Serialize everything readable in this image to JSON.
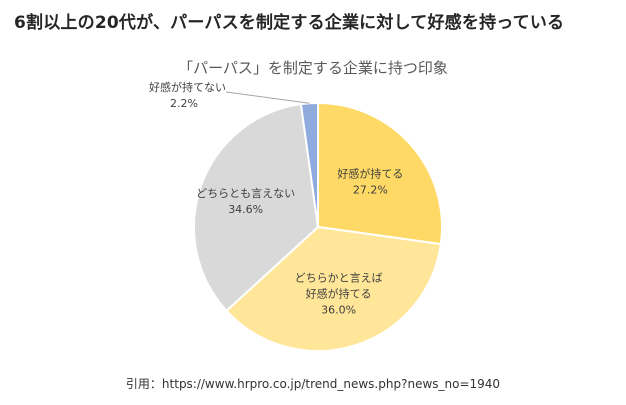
{
  "headline": "6割以上の20代が、パーパスを制定する企業に対して好感を持っている",
  "source": "引用：https://www.hrpro.co.jp/trend_news.php?news_no=1940",
  "chart_data": {
    "type": "pie",
    "title": "「パーパス」を制定する企業に持つ印象",
    "slices": [
      {
        "label": [
          "好感が持てる"
        ],
        "value": 27.2,
        "display": "27.2%",
        "color": "#FFD966"
      },
      {
        "label": [
          "どちらかと言えば",
          "好感が持てる"
        ],
        "value": 36.0,
        "display": "36.0%",
        "color": "#FFE699"
      },
      {
        "label": [
          "どちらとも言えない"
        ],
        "value": 34.6,
        "display": "34.6%",
        "color": "#D9D9D9"
      },
      {
        "label": [
          "好感が持てない"
        ],
        "value": 2.2,
        "display": "2.2%",
        "color": "#8FAADC"
      }
    ]
  }
}
